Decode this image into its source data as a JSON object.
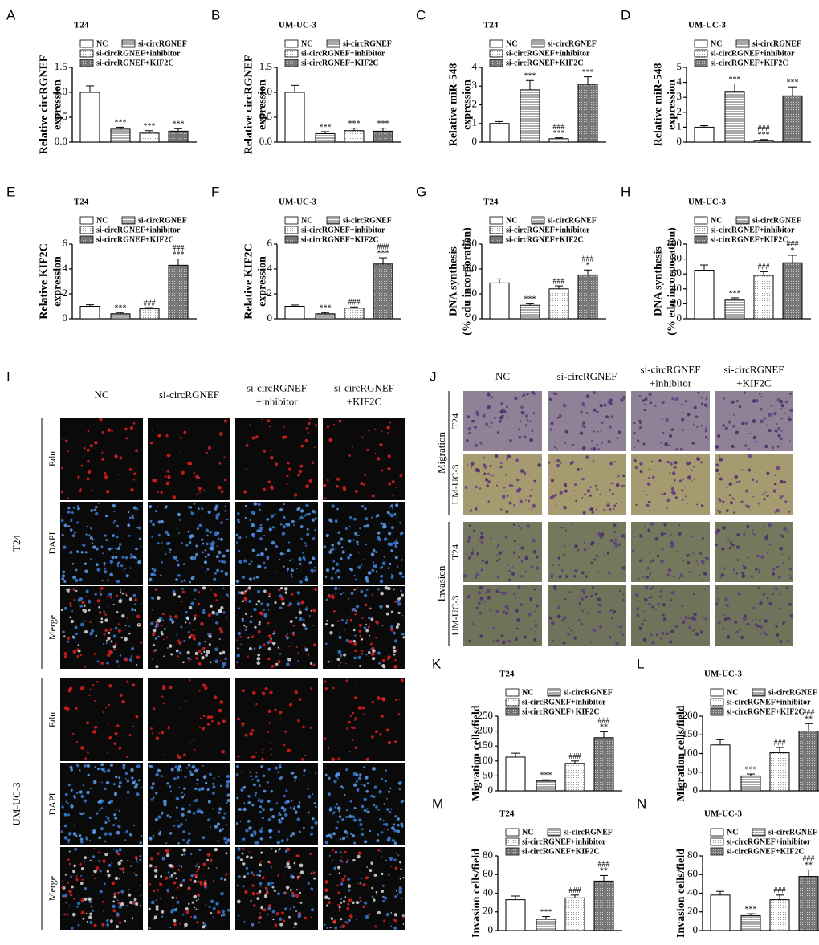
{
  "chart_data": [
    {
      "type": "bar",
      "letter": "A",
      "title": "T24",
      "ylabel": [
        "Relative circRGNEF",
        "expression"
      ],
      "ylim": [
        0,
        1.5
      ],
      "yticks": [
        {
          "value": 0,
          "label": "0.0"
        },
        0.5,
        {
          "value": 1,
          "label": "1.0"
        },
        1.5
      ],
      "series": [
        {
          "name": "NC",
          "pattern": "none",
          "values": [
            1.0
          ],
          "errors": [
            0.13
          ],
          "annotations": []
        },
        {
          "name": "si-circRGNEF",
          "pattern": "stripes",
          "values": [
            0.26
          ],
          "errors": [
            0.04
          ],
          "annotations": [
            "***"
          ]
        },
        {
          "name": "si-circRGNEF+inhibitor",
          "pattern": "dots",
          "values": [
            0.18
          ],
          "errors": [
            0.05
          ],
          "annotations": [
            "***"
          ]
        },
        {
          "name": "si-circRGNEF+KIF2C",
          "pattern": "dark",
          "values": [
            0.22
          ],
          "errors": [
            0.05
          ],
          "annotations": [
            "***"
          ]
        }
      ]
    },
    {
      "type": "bar",
      "letter": "B",
      "title": "UM-UC-3",
      "ylabel": [
        "Relative circRGNEF",
        "expression"
      ],
      "ylim": [
        0,
        1.5
      ],
      "yticks": [
        {
          "value": 0,
          "label": "0.0"
        },
        0.5,
        {
          "value": 1,
          "label": "1.0"
        },
        1.5
      ],
      "series": [
        {
          "name": "NC",
          "pattern": "none",
          "values": [
            1.0
          ],
          "errors": [
            0.14
          ],
          "annotations": []
        },
        {
          "name": "si-circRGNEF",
          "pattern": "stripes",
          "values": [
            0.17
          ],
          "errors": [
            0.04
          ],
          "annotations": [
            "***"
          ]
        },
        {
          "name": "si-circRGNEF+inhibitor",
          "pattern": "dots",
          "values": [
            0.23
          ],
          "errors": [
            0.05
          ],
          "annotations": [
            "***"
          ]
        },
        {
          "name": "si-circRGNEF+KIF2C",
          "pattern": "dark",
          "values": [
            0.22
          ],
          "errors": [
            0.06
          ],
          "annotations": [
            "***"
          ]
        }
      ]
    },
    {
      "type": "bar",
      "letter": "C",
      "title": "T24",
      "ylabel": [
        "Relative miR-548",
        "expression"
      ],
      "ylim": [
        0,
        4
      ],
      "yticks": [
        0,
        1,
        2,
        3,
        4
      ],
      "series": [
        {
          "name": "NC",
          "pattern": "none",
          "values": [
            1.0
          ],
          "errors": [
            0.1
          ],
          "annotations": []
        },
        {
          "name": "si-circRGNEF",
          "pattern": "stripes",
          "values": [
            2.8
          ],
          "errors": [
            0.5
          ],
          "annotations": [
            "***"
          ]
        },
        {
          "name": "si-circRGNEF+inhibitor",
          "pattern": "dots",
          "values": [
            0.18
          ],
          "errors": [
            0.05
          ],
          "annotations": [
            "###",
            "***"
          ]
        },
        {
          "name": "si-circRGNEF+KIF2C",
          "pattern": "dark",
          "values": [
            3.1
          ],
          "errors": [
            0.4
          ],
          "annotations": [
            "***"
          ]
        }
      ]
    },
    {
      "type": "bar",
      "letter": "D",
      "title": "UM-UC-3",
      "ylabel": [
        "Relative miR-548",
        "expression"
      ],
      "ylim": [
        0,
        5
      ],
      "yticks": [
        0,
        1,
        2,
        3,
        4,
        5
      ],
      "series": [
        {
          "name": "NC",
          "pattern": "none",
          "values": [
            1.0
          ],
          "errors": [
            0.1
          ],
          "annotations": []
        },
        {
          "name": "si-circRGNEF",
          "pattern": "stripes",
          "values": [
            3.4
          ],
          "errors": [
            0.5
          ],
          "annotations": [
            "***"
          ]
        },
        {
          "name": "si-circRGNEF+inhibitor",
          "pattern": "dots",
          "values": [
            0.12
          ],
          "errors": [
            0.05
          ],
          "annotations": [
            "###",
            "***"
          ]
        },
        {
          "name": "si-circRGNEF+KIF2C",
          "pattern": "dark",
          "values": [
            3.1
          ],
          "errors": [
            0.6
          ],
          "annotations": [
            "***"
          ]
        }
      ]
    },
    {
      "type": "bar",
      "letter": "E",
      "title": "T24",
      "ylabel": [
        "Relative KIF2C",
        "expression"
      ],
      "ylim": [
        0,
        6
      ],
      "yticks": [
        0,
        2,
        4,
        6
      ],
      "series": [
        {
          "name": "NC",
          "pattern": "none",
          "values": [
            1.0
          ],
          "errors": [
            0.12
          ],
          "annotations": []
        },
        {
          "name": "si-circRGNEF",
          "pattern": "stripes",
          "values": [
            0.4
          ],
          "errors": [
            0.1
          ],
          "annotations": [
            "***"
          ]
        },
        {
          "name": "si-circRGNEF+inhibitor",
          "pattern": "dots",
          "values": [
            0.8
          ],
          "errors": [
            0.1
          ],
          "annotations": [
            "###"
          ]
        },
        {
          "name": "si-circRGNEF+KIF2C",
          "pattern": "dark",
          "values": [
            4.3
          ],
          "errors": [
            0.5
          ],
          "annotations": [
            "###",
            "***"
          ]
        }
      ]
    },
    {
      "type": "bar",
      "letter": "F",
      "title": "UM-UC-3",
      "ylabel": [
        "Relative KIF2C",
        "expression"
      ],
      "ylim": [
        0,
        6
      ],
      "yticks": [
        0,
        2,
        4,
        6
      ],
      "series": [
        {
          "name": "NC",
          "pattern": "none",
          "values": [
            1.0
          ],
          "errors": [
            0.1
          ],
          "annotations": []
        },
        {
          "name": "si-circRGNEF",
          "pattern": "stripes",
          "values": [
            0.4
          ],
          "errors": [
            0.1
          ],
          "annotations": [
            "***"
          ]
        },
        {
          "name": "si-circRGNEF+inhibitor",
          "pattern": "dots",
          "values": [
            0.85
          ],
          "errors": [
            0.1
          ],
          "annotations": [
            "###"
          ]
        },
        {
          "name": "si-circRGNEF+KIF2C",
          "pattern": "dark",
          "values": [
            4.4
          ],
          "errors": [
            0.5
          ],
          "annotations": [
            "###",
            "***"
          ]
        }
      ]
    },
    {
      "type": "bar",
      "letter": "G",
      "title": "T24",
      "ylabel": [
        "DNA synthesis",
        "(% edu incorporation)"
      ],
      "ylim": [
        0,
        150
      ],
      "yticks": [
        0,
        50,
        100,
        150
      ],
      "series": [
        {
          "name": "NC",
          "pattern": "none",
          "values": [
            72
          ],
          "errors": [
            8
          ],
          "annotations": []
        },
        {
          "name": "si-circRGNEF",
          "pattern": "stripes",
          "values": [
            27
          ],
          "errors": [
            3
          ],
          "annotations": [
            "***"
          ]
        },
        {
          "name": "si-circRGNEF+inhibitor",
          "pattern": "dots",
          "values": [
            60
          ],
          "errors": [
            6
          ],
          "annotations": [
            "###"
          ]
        },
        {
          "name": "si-circRGNEF+KIF2C",
          "pattern": "dark",
          "values": [
            88
          ],
          "errors": [
            10
          ],
          "annotations": [
            "###",
            "*"
          ]
        }
      ]
    },
    {
      "type": "bar",
      "letter": "H",
      "title": "UM-UC-3",
      "ylabel": [
        "DNA synthesis",
        "(% edu incorporation)"
      ],
      "ylim": [
        0,
        100
      ],
      "yticks": [
        0,
        20,
        40,
        60,
        80,
        100
      ],
      "series": [
        {
          "name": "NC",
          "pattern": "none",
          "values": [
            65
          ],
          "errors": [
            7
          ],
          "annotations": []
        },
        {
          "name": "si-circRGNEF",
          "pattern": "stripes",
          "values": [
            25
          ],
          "errors": [
            3
          ],
          "annotations": [
            "***"
          ]
        },
        {
          "name": "si-circRGNEF+inhibitor",
          "pattern": "dots",
          "values": [
            58
          ],
          "errors": [
            5
          ],
          "annotations": [
            "###"
          ]
        },
        {
          "name": "si-circRGNEF+KIF2C",
          "pattern": "dark",
          "values": [
            75
          ],
          "errors": [
            10
          ],
          "annotations": [
            "###",
            "*"
          ]
        }
      ]
    },
    {
      "type": "bar",
      "letter": "K",
      "title": "T24",
      "ylabel": [
        "Migration cells/field"
      ],
      "ylim": [
        0,
        250
      ],
      "yticks": [
        0,
        50,
        100,
        150,
        200,
        250
      ],
      "series": [
        {
          "name": "NC",
          "pattern": "none",
          "values": [
            113
          ],
          "errors": [
            13
          ],
          "annotations": []
        },
        {
          "name": "si-circRGNEF",
          "pattern": "stripes",
          "values": [
            33
          ],
          "errors": [
            4
          ],
          "annotations": [
            "***"
          ]
        },
        {
          "name": "si-circRGNEF+inhibitor",
          "pattern": "dots",
          "values": [
            92
          ],
          "errors": [
            8
          ],
          "annotations": [
            "###"
          ]
        },
        {
          "name": "si-circRGNEF+KIF2C",
          "pattern": "dark",
          "values": [
            178
          ],
          "errors": [
            20
          ],
          "annotations": [
            "###",
            "**"
          ]
        }
      ]
    },
    {
      "type": "bar",
      "letter": "L",
      "title": "UM-UC-3",
      "ylabel": [
        "Migration cells/field"
      ],
      "ylim": [
        0,
        200
      ],
      "yticks": [
        0,
        50,
        100,
        150,
        200
      ],
      "series": [
        {
          "name": "NC",
          "pattern": "none",
          "values": [
            123
          ],
          "errors": [
            14
          ],
          "annotations": []
        },
        {
          "name": "si-circRGNEF",
          "pattern": "stripes",
          "values": [
            40
          ],
          "errors": [
            5
          ],
          "annotations": [
            "***"
          ]
        },
        {
          "name": "si-circRGNEF+inhibitor",
          "pattern": "dots",
          "values": [
            102
          ],
          "errors": [
            14
          ],
          "annotations": [
            "###"
          ]
        },
        {
          "name": "si-circRGNEF+KIF2C",
          "pattern": "dark",
          "values": [
            160
          ],
          "errors": [
            20
          ],
          "annotations": [
            "###",
            "**"
          ]
        }
      ]
    },
    {
      "type": "bar",
      "letter": "M",
      "title": "T24",
      "ylabel": [
        "Invasion cells/field"
      ],
      "ylim": [
        0,
        80
      ],
      "yticks": [
        0,
        20,
        40,
        60,
        80
      ],
      "series": [
        {
          "name": "NC",
          "pattern": "none",
          "values": [
            33
          ],
          "errors": [
            4
          ],
          "annotations": []
        },
        {
          "name": "si-circRGNEF",
          "pattern": "stripes",
          "values": [
            12
          ],
          "errors": [
            3
          ],
          "annotations": [
            "***"
          ]
        },
        {
          "name": "si-circRGNEF+inhibitor",
          "pattern": "dots",
          "values": [
            35
          ],
          "errors": [
            3
          ],
          "annotations": [
            "###"
          ]
        },
        {
          "name": "si-circRGNEF+KIF2C",
          "pattern": "dark",
          "values": [
            53
          ],
          "errors": [
            6
          ],
          "annotations": [
            "###",
            "**"
          ]
        }
      ]
    },
    {
      "type": "bar",
      "letter": "N",
      "title": "UM-UC-3",
      "ylabel": [
        "Invasion cells/field"
      ],
      "ylim": [
        0,
        80
      ],
      "yticks": [
        0,
        20,
        40,
        60,
        80
      ],
      "series": [
        {
          "name": "NC",
          "pattern": "none",
          "values": [
            38
          ],
          "errors": [
            4
          ],
          "annotations": []
        },
        {
          "name": "si-circRGNEF",
          "pattern": "stripes",
          "values": [
            16
          ],
          "errors": [
            2
          ],
          "annotations": [
            "***"
          ]
        },
        {
          "name": "si-circRGNEF+inhibitor",
          "pattern": "dots",
          "values": [
            33
          ],
          "errors": [
            5
          ],
          "annotations": [
            "###"
          ]
        },
        {
          "name": "si-circRGNEF+KIF2C",
          "pattern": "dark",
          "values": [
            58
          ],
          "errors": [
            7
          ],
          "annotations": [
            "###",
            "**"
          ]
        }
      ]
    }
  ],
  "image_panels": [
    {
      "letter": "I",
      "columns": [
        [
          "NC"
        ],
        [
          "si-circRGNEF"
        ],
        [
          "si-circRGNEF",
          "+inhibitor"
        ],
        [
          "si-circRGNEF",
          "+KIF2C"
        ]
      ],
      "groups": [
        {
          "label": "T24",
          "rows": [
            "Edu",
            "DAPI",
            "Merge"
          ]
        },
        {
          "label": "UM-UC-3",
          "rows": [
            "Edu",
            "DAPI",
            "Merge"
          ]
        }
      ]
    },
    {
      "letter": "J",
      "columns": [
        [
          "NC"
        ],
        [
          "si-circRGNEF"
        ],
        [
          "si-circRGNEF",
          "+inhibitor"
        ],
        [
          "si-circRGNEF",
          "+KIF2C"
        ]
      ],
      "groups": [
        {
          "label": "Migration",
          "rows": [
            "T24",
            "UM-UC-3"
          ]
        },
        {
          "label": "Invasion",
          "rows": [
            "T24",
            "UM-UC-3"
          ]
        }
      ]
    }
  ]
}
